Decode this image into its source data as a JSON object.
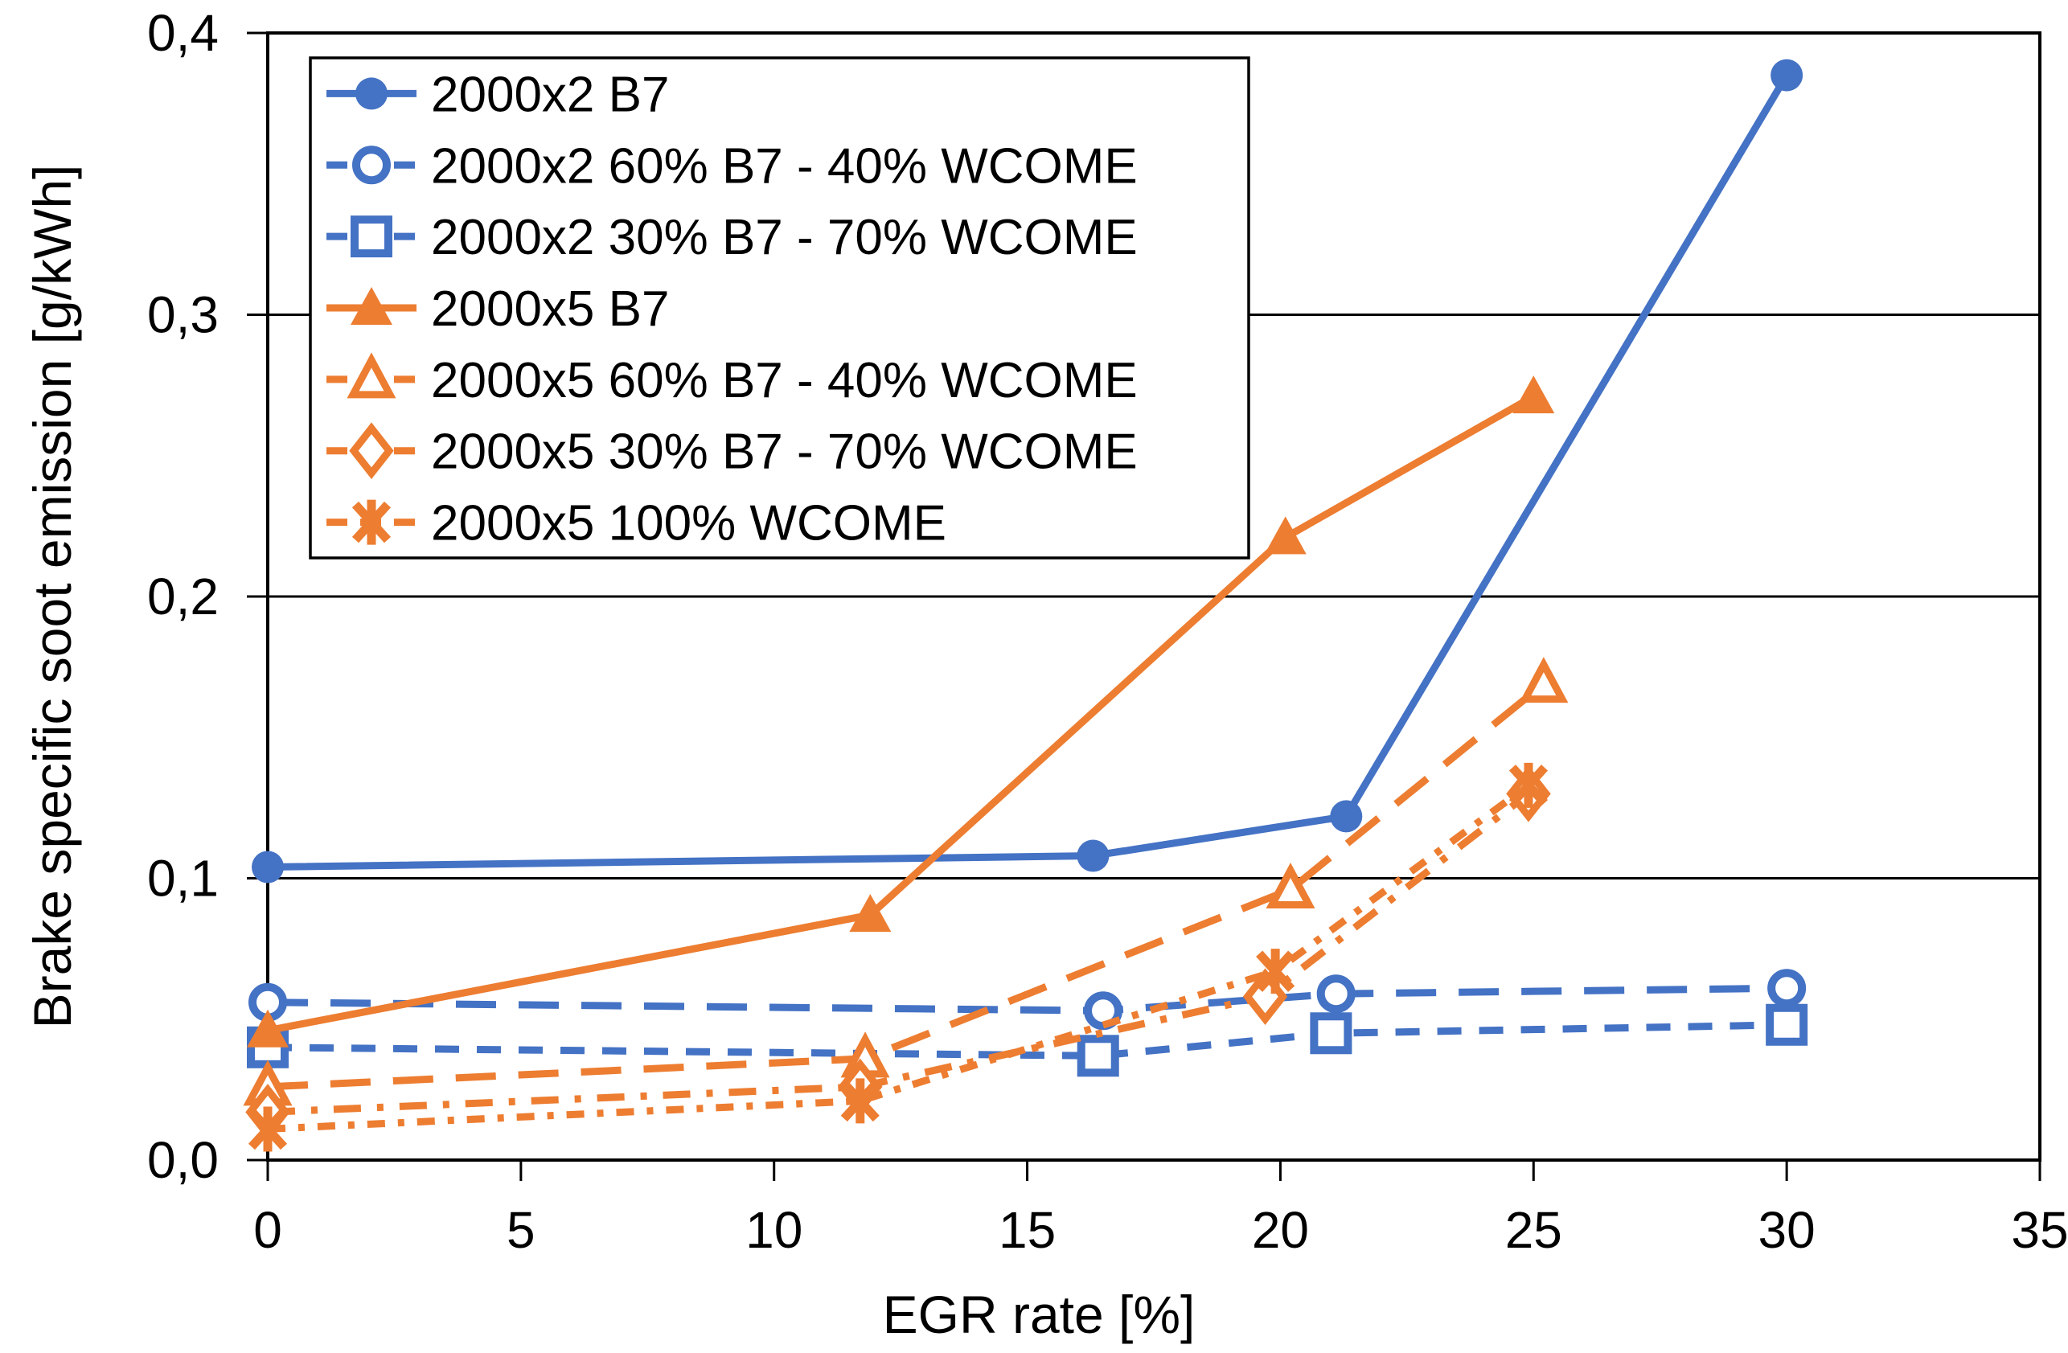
{
  "chart_data": {
    "type": "line",
    "title": "",
    "xlabel": "EGR rate [%]",
    "ylabel": "Brake specific soot emission [g/kWh]",
    "xlim": [
      0,
      35
    ],
    "ylim": [
      0,
      0.4
    ],
    "x_tick_values": [
      0,
      5,
      10,
      15,
      20,
      25,
      30,
      35
    ],
    "x_tick_labels": [
      "0",
      "5",
      "10",
      "15",
      "20",
      "25",
      "30",
      "35"
    ],
    "y_tick_values": [
      0,
      0.1,
      0.2,
      0.3,
      0.4
    ],
    "y_tick_labels": [
      "0,0",
      "0,1",
      "0,2",
      "0,3",
      "0,4"
    ],
    "decimal_separator": ",",
    "grid": "horizontal-only",
    "legend_position": "inside-top-left",
    "series": [
      {
        "name": "2000x2 B7",
        "color": "#4472C4",
        "line_style": "solid",
        "marker": "circle-filled",
        "points": [
          [
            0,
            0.104
          ],
          [
            16.3,
            0.108
          ],
          [
            21.3,
            0.122
          ],
          [
            30,
            0.385
          ]
        ]
      },
      {
        "name": "2000x2 60% B7 - 40% WCOME",
        "color": "#4472C4",
        "line_style": "long-dash",
        "marker": "circle-open",
        "points": [
          [
            0,
            0.056
          ],
          [
            16.5,
            0.053
          ],
          [
            21.1,
            0.059
          ],
          [
            30,
            0.061
          ]
        ]
      },
      {
        "name": "2000x2 30% B7 - 70% WCOME",
        "color": "#4472C4",
        "line_style": "dash",
        "marker": "square-open",
        "points": [
          [
            0,
            0.04
          ],
          [
            16.4,
            0.037
          ],
          [
            21.0,
            0.045
          ],
          [
            30,
            0.048
          ]
        ]
      },
      {
        "name": "2000x5 B7",
        "color": "#ED7D31",
        "line_style": "solid",
        "marker": "triangle-filled",
        "points": [
          [
            0,
            0.046
          ],
          [
            11.9,
            0.087
          ],
          [
            20.1,
            0.221
          ],
          [
            25,
            0.271
          ]
        ]
      },
      {
        "name": "2000x5 60% B7 - 40% WCOME",
        "color": "#ED7D31",
        "line_style": "long-dash",
        "marker": "triangle-open",
        "points": [
          [
            0,
            0.026
          ],
          [
            11.8,
            0.036
          ],
          [
            20.2,
            0.096
          ],
          [
            25.2,
            0.169
          ]
        ]
      },
      {
        "name": "2000x5 30% B7 - 70% WCOME",
        "color": "#ED7D31",
        "line_style": "dash-dot",
        "marker": "diamond-open",
        "points": [
          [
            0,
            0.017
          ],
          [
            11.7,
            0.026
          ],
          [
            19.7,
            0.058
          ],
          [
            24.9,
            0.13
          ]
        ]
      },
      {
        "name": "2000x5 100% WCOME",
        "color": "#ED7D31",
        "line_style": "dash-dot-small",
        "marker": "star",
        "points": [
          [
            0,
            0.011
          ],
          [
            11.7,
            0.021
          ],
          [
            19.9,
            0.067
          ],
          [
            24.9,
            0.133
          ]
        ]
      }
    ]
  },
  "colors": {
    "series_blue": "#4472C4",
    "series_orange": "#ED7D31",
    "axis": "#000000",
    "background": "#FFFFFF"
  }
}
